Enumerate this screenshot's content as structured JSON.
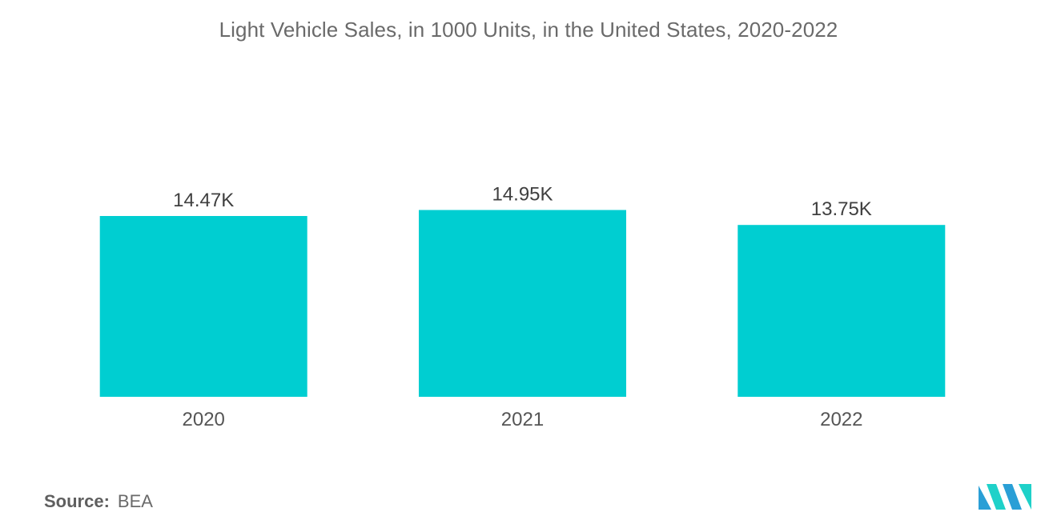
{
  "chart_data": {
    "type": "bar",
    "title": "Light Vehicle Sales, in 1000 Units, in the United States, 2020-2022",
    "categories": [
      "2020",
      "2021",
      "2022"
    ],
    "values": [
      14.47,
      14.95,
      13.75
    ],
    "data_labels": [
      "14.47K",
      "14.95K",
      "13.75K"
    ],
    "xlabel": "",
    "ylabel": "",
    "ylim": [
      0,
      16.5
    ],
    "grid": false,
    "legend": "none",
    "colors": {
      "bar": "#00ced1"
    }
  },
  "source": {
    "label": "Source:",
    "value": "BEA"
  },
  "logo": {
    "icon": "mordor-intelligence-logo-icon",
    "colors": [
      "#2a9fd6",
      "#1fd1c9"
    ]
  }
}
